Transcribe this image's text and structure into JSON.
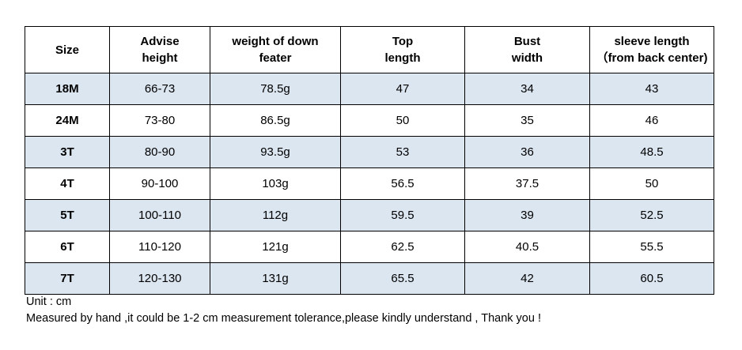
{
  "table": {
    "header": [
      [
        "Size"
      ],
      [
        "Advise",
        "height"
      ],
      [
        "weight of down",
        "feater"
      ],
      [
        "Top",
        "length"
      ],
      [
        "Bust",
        "width"
      ],
      [
        "sleeve length",
        "（from back center)"
      ]
    ],
    "rows": [
      [
        "18M",
        "66-73",
        "78.5g",
        "47",
        "34",
        "43"
      ],
      [
        "24M",
        "73-80",
        "86.5g",
        "50",
        "35",
        "46"
      ],
      [
        "3T",
        "80-90",
        "93.5g",
        "53",
        "36",
        "48.5"
      ],
      [
        "4T",
        "90-100",
        "103g",
        "56.5",
        "37.5",
        "50"
      ],
      [
        "5T",
        "100-110",
        "112g",
        "59.5",
        "39",
        "52.5"
      ],
      [
        "6T",
        "110-120",
        "121g",
        "62.5",
        "40.5",
        "55.5"
      ],
      [
        "7T",
        "120-130",
        "131g",
        "65.5",
        "42",
        "60.5"
      ]
    ]
  },
  "notes": [
    "Unit : cm",
    "Measured by hand ,it could be 1-2 cm measurement tolerance,please kindly understand , Thank you !"
  ]
}
